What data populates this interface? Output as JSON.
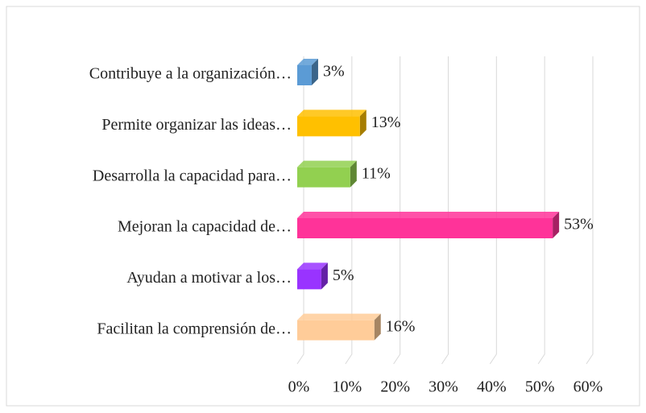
{
  "chart_data": {
    "type": "bar",
    "orientation": "horizontal",
    "categories": [
      "Contribuye a la organización…",
      "Permite organizar las ideas…",
      "Desarrolla la capacidad para…",
      "Mejoran la capacidad de…",
      "Ayudan a motivar a los…",
      "Facilitan la comprensión de…"
    ],
    "values": [
      3,
      13,
      11,
      53,
      5,
      16
    ],
    "value_labels": [
      "3%",
      "13%",
      "11%",
      "53%",
      "5%",
      "16%"
    ],
    "colors": [
      "#5b9bd5",
      "#ffc000",
      "#92d050",
      "#ff3399",
      "#9933ff",
      "#ffcc99"
    ],
    "xlim": [
      0,
      60
    ],
    "xticks": [
      {
        "value": 0,
        "label": "0%"
      },
      {
        "value": 10,
        "label": "10%"
      },
      {
        "value": 20,
        "label": "20%"
      },
      {
        "value": 30,
        "label": "30%"
      },
      {
        "value": 40,
        "label": "40%"
      },
      {
        "value": 50,
        "label": "50%"
      },
      {
        "value": 60,
        "label": "60%"
      }
    ],
    "grid": true
  }
}
